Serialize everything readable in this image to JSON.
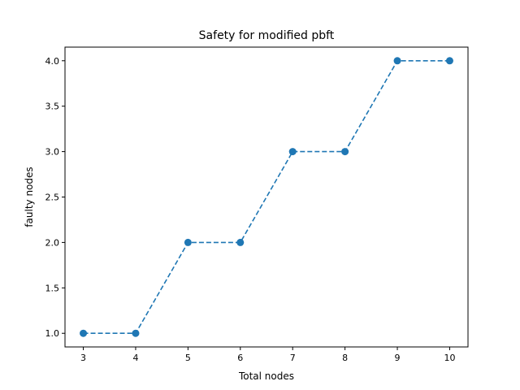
{
  "chart_data": {
    "type": "line",
    "title": "Safety for modified pbft",
    "xlabel": "Total nodes",
    "ylabel": "faulty nodes",
    "x": [
      3,
      4,
      5,
      6,
      7,
      8,
      9,
      10
    ],
    "series": [
      {
        "values": [
          1.0,
          1.0,
          2.0,
          2.0,
          3.0,
          3.0,
          4.0,
          4.0
        ]
      }
    ],
    "xlim": [
      2.65,
      10.35
    ],
    "ylim": [
      0.85,
      4.15
    ],
    "xticks": [
      "3",
      "4",
      "5",
      "6",
      "7",
      "8",
      "9",
      "10"
    ],
    "yticks": [
      "1.0",
      "1.5",
      "2.0",
      "2.5",
      "3.0",
      "3.5",
      "4.0"
    ],
    "line_style": "dashed",
    "marker": "circle",
    "color": "#1f77b4",
    "grid": false,
    "legend": "none"
  }
}
